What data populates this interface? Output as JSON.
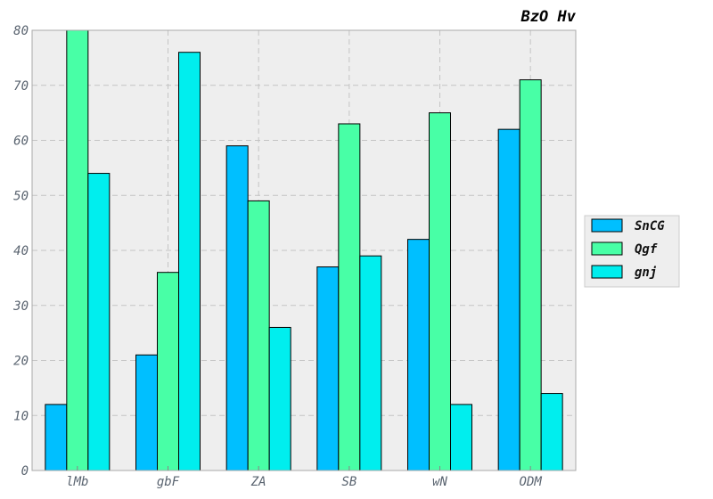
{
  "chart_data": {
    "type": "bar",
    "title": "BzO Hv",
    "xlabel": "",
    "ylabel": "",
    "categories": [
      "lMb",
      "gbF",
      "ZA",
      "SB",
      "wN",
      "ODM"
    ],
    "series": [
      {
        "name": "SnCG",
        "color": "#00bfff",
        "values": [
          12,
          21,
          59,
          37,
          42,
          62
        ]
      },
      {
        "name": "Qgf",
        "color": "#48ffa6",
        "values": [
          80,
          36,
          49,
          63,
          65,
          71
        ]
      },
      {
        "name": "gnj",
        "color": "#00eeee",
        "values": [
          54,
          76,
          26,
          39,
          12,
          14
        ]
      }
    ],
    "ylim": [
      0,
      80
    ],
    "yticks": [
      0,
      10,
      20,
      30,
      40,
      50,
      60,
      70,
      80
    ],
    "grid": true,
    "legend_position": "right",
    "plot_background": "#eeeeee"
  }
}
